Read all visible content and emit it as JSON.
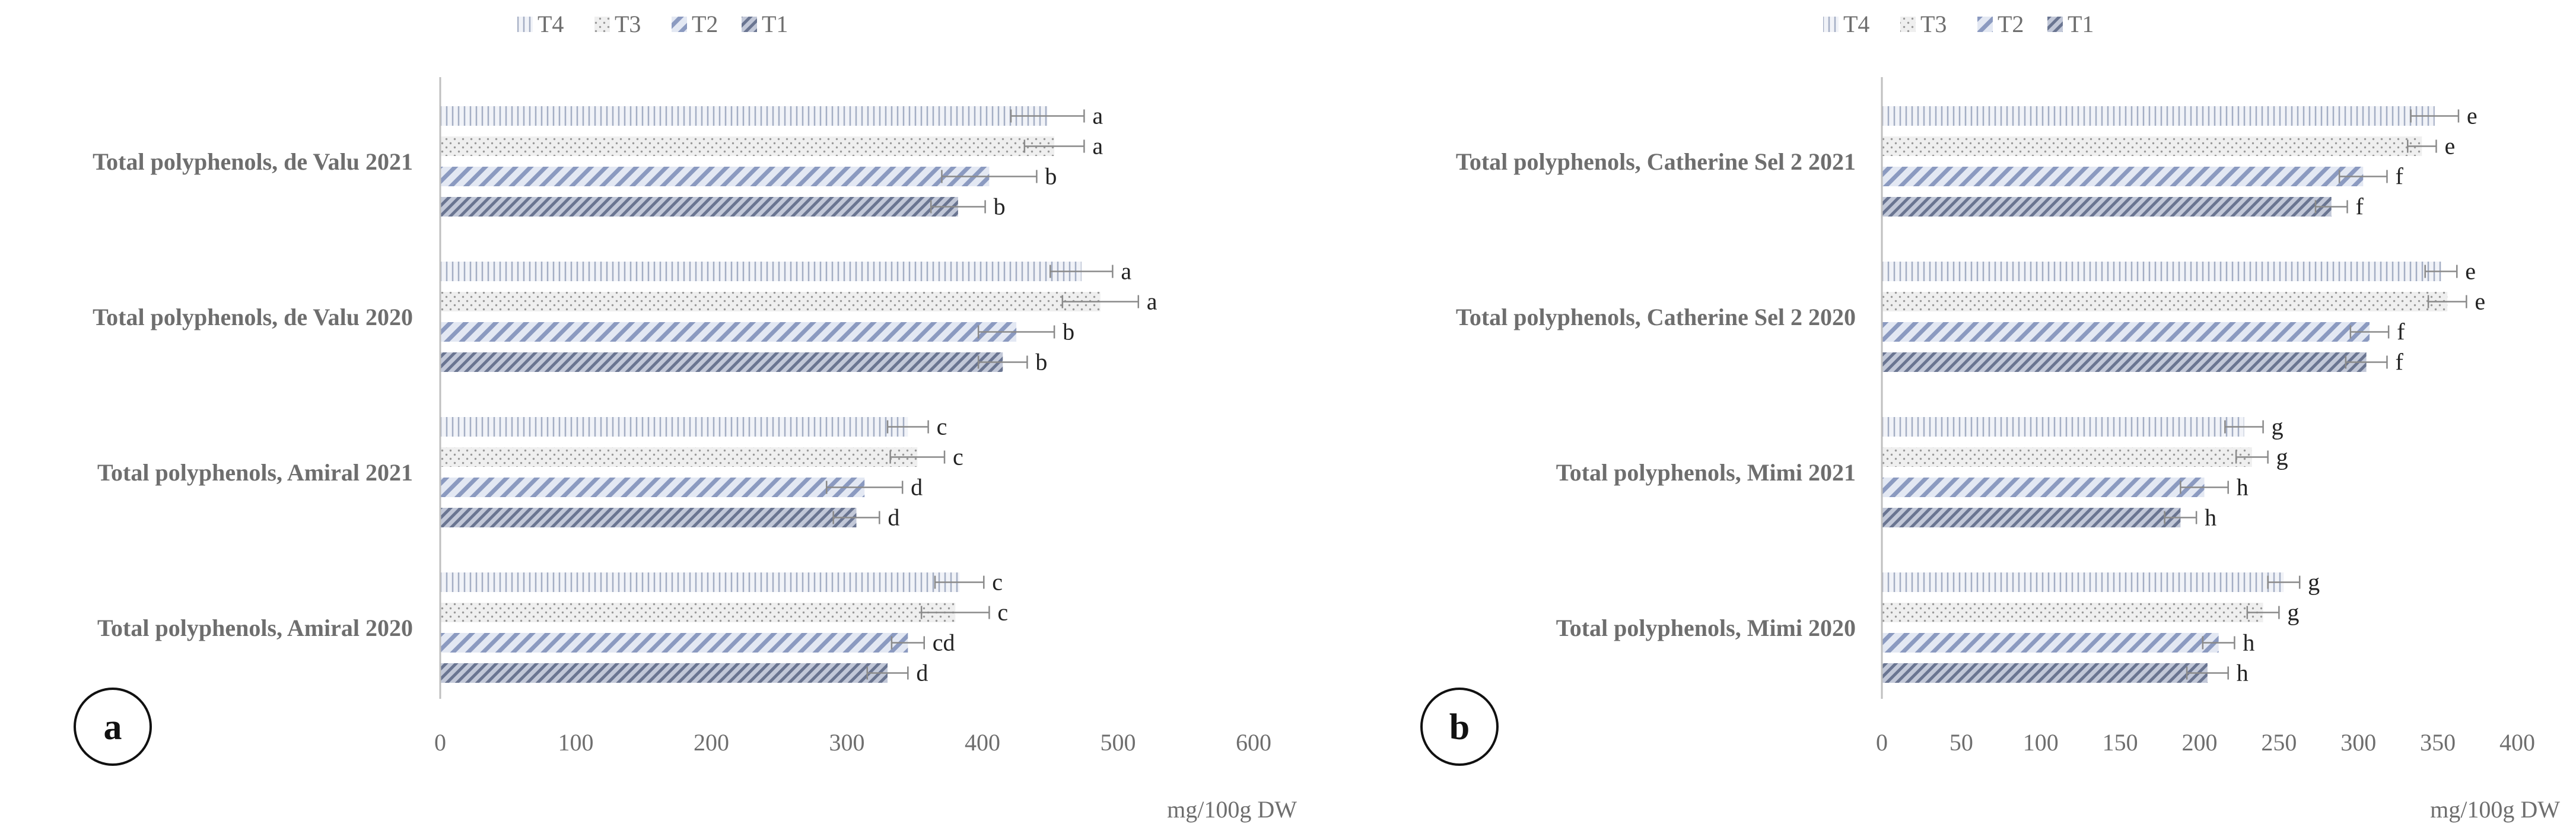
{
  "chart_data": [
    {
      "panel": "a",
      "type": "bar",
      "orientation": "horizontal",
      "xlabel": "mg/100g DW",
      "xlim": [
        0,
        600
      ],
      "xticks": [
        0,
        100,
        200,
        300,
        400,
        500,
        600
      ],
      "legend_position": "top",
      "legend": [
        "T4",
        "T3",
        "T2",
        "T1"
      ],
      "categories": [
        {
          "label": "Total polyphenols, de Valu 2021",
          "bars": [
            {
              "series": "T4",
              "value": 448,
              "error": 27,
              "sig": "a"
            },
            {
              "series": "T3",
              "value": 453,
              "error": 22,
              "sig": "a"
            },
            {
              "series": "T2",
              "value": 405,
              "error": 35,
              "sig": "b"
            },
            {
              "series": "T1",
              "value": 382,
              "error": 20,
              "sig": "b"
            }
          ]
        },
        {
          "label": "Total polyphenols, de Valu 2020",
          "bars": [
            {
              "series": "T4",
              "value": 473,
              "error": 23,
              "sig": "a"
            },
            {
              "series": "T3",
              "value": 487,
              "error": 28,
              "sig": "a"
            },
            {
              "series": "T2",
              "value": 425,
              "error": 28,
              "sig": "b"
            },
            {
              "series": "T1",
              "value": 415,
              "error": 18,
              "sig": "b"
            }
          ]
        },
        {
          "label": "Total polyphenols, Amiral 2021",
          "bars": [
            {
              "series": "T4",
              "value": 345,
              "error": 15,
              "sig": "c"
            },
            {
              "series": "T3",
              "value": 352,
              "error": 20,
              "sig": "c"
            },
            {
              "series": "T2",
              "value": 313,
              "error": 28,
              "sig": "d"
            },
            {
              "series": "T1",
              "value": 307,
              "error": 17,
              "sig": "d"
            }
          ]
        },
        {
          "label": "Total polyphenols, Amiral 2020",
          "bars": [
            {
              "series": "T4",
              "value": 383,
              "error": 18,
              "sig": "c"
            },
            {
              "series": "T3",
              "value": 380,
              "error": 25,
              "sig": "c"
            },
            {
              "series": "T2",
              "value": 345,
              "error": 12,
              "sig": "cd"
            },
            {
              "series": "T1",
              "value": 330,
              "error": 15,
              "sig": "d"
            }
          ]
        }
      ]
    },
    {
      "panel": "b",
      "type": "bar",
      "orientation": "horizontal",
      "xlabel": "mg/100g DW",
      "xlim": [
        0,
        400
      ],
      "xticks": [
        0,
        50,
        100,
        150,
        200,
        250,
        300,
        350,
        400
      ],
      "legend_position": "top",
      "legend": [
        "T4",
        "T3",
        "T2",
        "T1"
      ],
      "categories": [
        {
          "label": "Total polyphenols, Catherine Sel 2 2021",
          "bars": [
            {
              "series": "T4",
              "value": 348,
              "error": 15,
              "sig": "e"
            },
            {
              "series": "T3",
              "value": 340,
              "error": 9,
              "sig": "e"
            },
            {
              "series": "T2",
              "value": 303,
              "error": 15,
              "sig": "f"
            },
            {
              "series": "T1",
              "value": 283,
              "error": 10,
              "sig": "f"
            }
          ]
        },
        {
          "label": "Total polyphenols, Catherine Sel 2 2020",
          "bars": [
            {
              "series": "T4",
              "value": 352,
              "error": 10,
              "sig": "e"
            },
            {
              "series": "T3",
              "value": 356,
              "error": 12,
              "sig": "e"
            },
            {
              "series": "T2",
              "value": 307,
              "error": 12,
              "sig": "f"
            },
            {
              "series": "T1",
              "value": 305,
              "error": 13,
              "sig": "f"
            }
          ]
        },
        {
          "label": "Total polyphenols, Mimi 2021",
          "bars": [
            {
              "series": "T4",
              "value": 228,
              "error": 12,
              "sig": "g"
            },
            {
              "series": "T3",
              "value": 233,
              "error": 10,
              "sig": "g"
            },
            {
              "series": "T2",
              "value": 203,
              "error": 15,
              "sig": "h"
            },
            {
              "series": "T1",
              "value": 188,
              "error": 10,
              "sig": "h"
            }
          ]
        },
        {
          "label": "Total polyphenols, Mimi 2020",
          "bars": [
            {
              "series": "T4",
              "value": 253,
              "error": 10,
              "sig": "g"
            },
            {
              "series": "T3",
              "value": 240,
              "error": 10,
              "sig": "g"
            },
            {
              "series": "T2",
              "value": 212,
              "error": 10,
              "sig": "h"
            },
            {
              "series": "T1",
              "value": 205,
              "error": 13,
              "sig": "h"
            }
          ]
        }
      ]
    }
  ]
}
